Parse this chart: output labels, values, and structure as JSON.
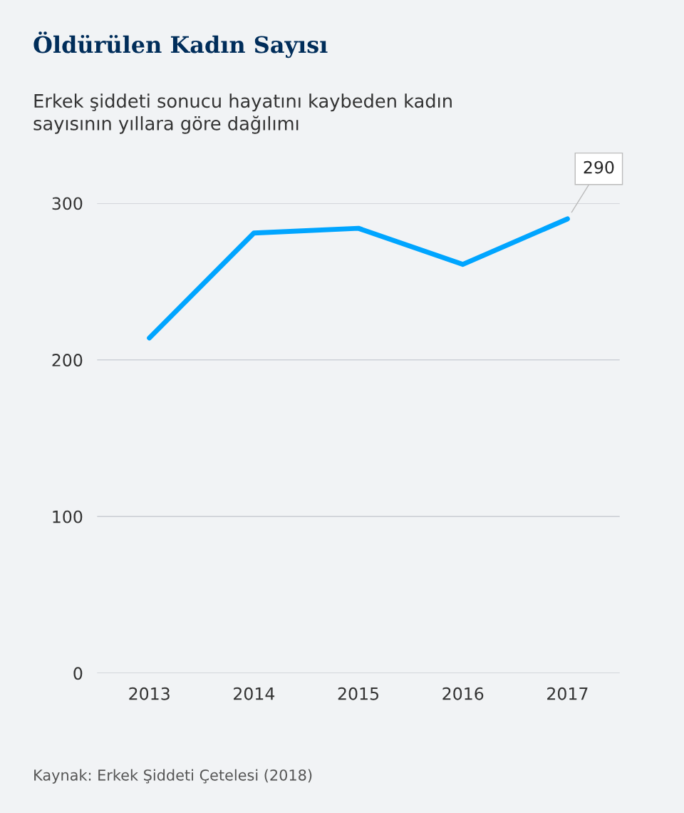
{
  "chart_data": {
    "type": "line",
    "title": "Öldürülen Kadın Sayısı",
    "subtitle": "Erkek şiddeti sonucu hayatını kaybeden kadın\nsayısının yıllara göre dağılımı",
    "categories": [
      "2013",
      "2014",
      "2015",
      "2016",
      "2017"
    ],
    "series": [
      {
        "color": "#00a5ff",
        "values": [
          214,
          281,
          284,
          261,
          290
        ]
      }
    ],
    "ylim": [
      0,
      300
    ],
    "yticks": [
      0,
      100,
      200,
      300
    ],
    "grid": "y",
    "legend": false,
    "marker": "none",
    "line_style": "solid",
    "annotations": [
      {
        "text": "290",
        "x": "2017",
        "y": 290
      },
      "Kaynak: Erkek Şiddeti Çetelesi (2018)"
    ]
  }
}
